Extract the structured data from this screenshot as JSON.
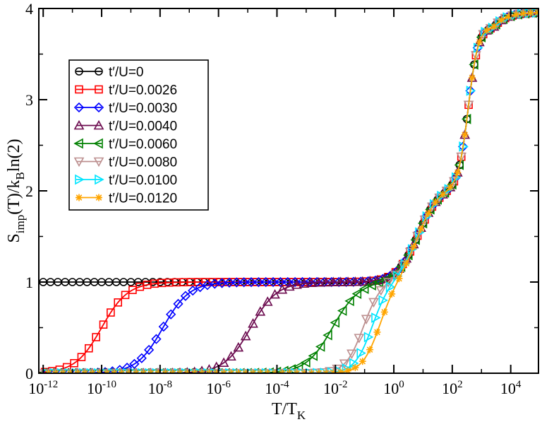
{
  "chart_data": {
    "type": "line",
    "xscale": "log10",
    "xlim_exp": [
      -12.15,
      4.95
    ],
    "ylim": [
      0,
      4
    ],
    "x_ticks_exp": [
      -12,
      -10,
      -8,
      -6,
      -4,
      -2,
      0,
      2,
      4
    ],
    "x_tick_labels": [
      "10-12",
      "10-10",
      "10-8",
      "10-6",
      "10-4",
      "10-2",
      "100",
      "102",
      "104"
    ],
    "y_ticks": [
      0,
      1,
      2,
      3,
      4
    ],
    "y_tick_labels": [
      "0",
      "1",
      "2",
      "3",
      "4"
    ],
    "xlabel": "T/TK",
    "ylabel": "Simp(T)/kBln(2)",
    "legend_position": "upper-left",
    "high_T_profile": {
      "low_plateau_end_exp": 0.8,
      "mid_plateau": 2.0,
      "mid_step_center_exp": 2.55,
      "top_value": 3.96
    },
    "series": [
      {
        "name": "t′/U=0",
        "color": "#000000",
        "marker": "circle",
        "low_T_value": 1.0,
        "step_center_exp": null
      },
      {
        "name": "t′/U=0.0026",
        "color": "#ff0000",
        "marker": "square",
        "low_T_value": 0.0,
        "step_center_exp": -10.0
      },
      {
        "name": "t′/U=0.0030",
        "color": "#0000ff",
        "marker": "diamond",
        "low_T_value": 0.0,
        "step_center_exp": -7.9
      },
      {
        "name": "t′/U=0.0040",
        "color": "#6b0a4e",
        "marker": "triangle-up",
        "low_T_value": 0.0,
        "step_center_exp": -4.9
      },
      {
        "name": "t′/U=0.0060",
        "color": "#008000",
        "marker": "triangle-left",
        "low_T_value": 0.0,
        "step_center_exp": -2.1
      },
      {
        "name": "t′/U=0.0080",
        "color": "#bc8f8f",
        "marker": "triangle-down",
        "low_T_value": 0.0,
        "step_center_exp": -1.05
      },
      {
        "name": "t′/U=0.0100",
        "color": "#00e5ff",
        "marker": "triangle-right",
        "low_T_value": 0.0,
        "step_center_exp": -0.75
      },
      {
        "name": "t′/U=0.0120",
        "color": "#ffa500",
        "marker": "star",
        "low_T_value": 0.0,
        "step_center_exp": -0.5
      }
    ]
  }
}
